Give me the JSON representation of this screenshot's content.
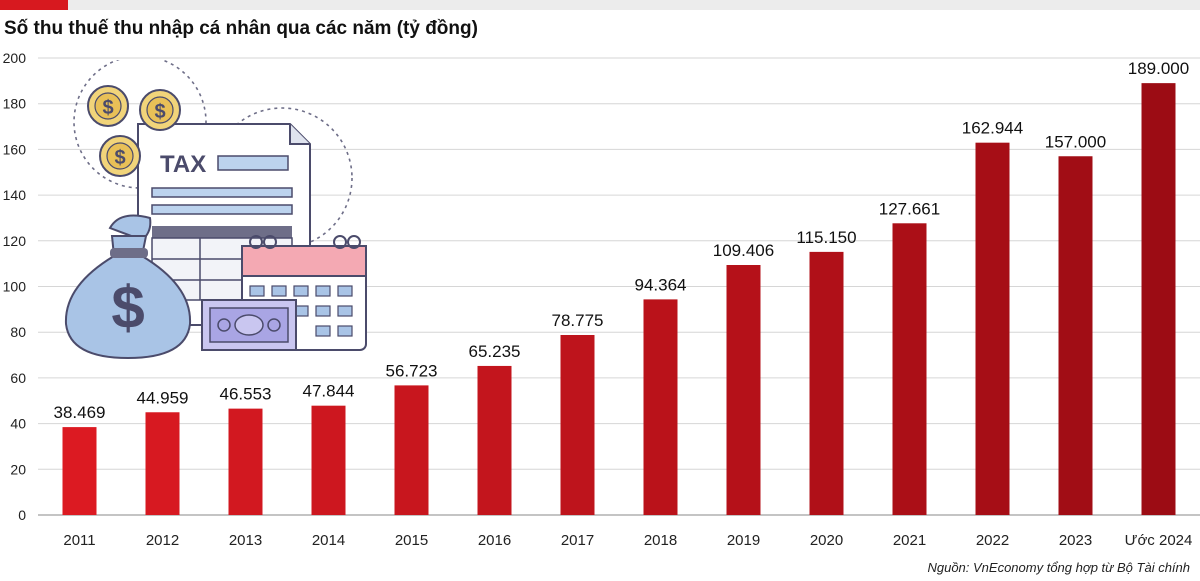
{
  "header": {
    "title": "Số thu thuế thu nhập cá nhân qua các năm (tỷ đồng)"
  },
  "footer": {
    "source": "Nguồn: VnEconomy tổng hợp từ Bộ Tài chính"
  },
  "illustration": {
    "tax_label": "TAX"
  },
  "colors": {
    "bar_start": "#dc1a22",
    "bar_end": "#9c0c14",
    "accent": "#d7191f",
    "grid": "#d6d6d6"
  },
  "chart_data": {
    "type": "bar",
    "title": "Số thu thuế thu nhập cá nhân qua các năm (tỷ đồng)",
    "xlabel": "",
    "ylabel": "",
    "categories": [
      "2011",
      "2012",
      "2013",
      "2014",
      "2015",
      "2016",
      "2017",
      "2018",
      "2019",
      "2020",
      "2021",
      "2022",
      "2023",
      "Ước 2024"
    ],
    "values": [
      38.469,
      44.959,
      46.553,
      47.844,
      56.723,
      65.235,
      78.775,
      94.364,
      109.406,
      115.15,
      127.661,
      162.944,
      157.0,
      189.0
    ],
    "data_labels": [
      "38.469",
      "44.959",
      "46.553",
      "47.844",
      "56.723",
      "65.235",
      "78.775",
      "94.364",
      "109.406",
      "115.150",
      "127.661",
      "162.944",
      "157.000",
      "189.000"
    ],
    "y_ticks": [
      0,
      20,
      40,
      60,
      80,
      100,
      120,
      140,
      160,
      180,
      200
    ],
    "ylim": [
      0,
      200
    ],
    "grid": true,
    "legend": "none"
  }
}
